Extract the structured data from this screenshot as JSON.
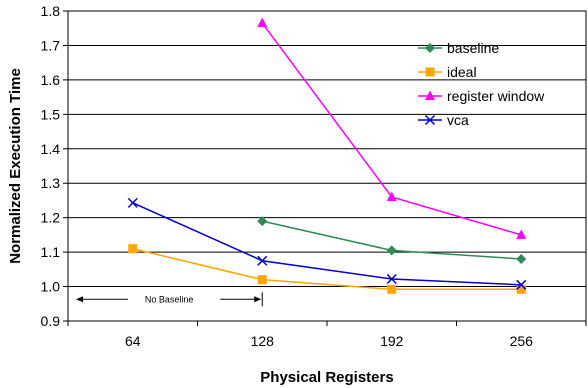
{
  "chart_data": {
    "type": "line",
    "xlabel": "Physical Registers",
    "ylabel": "Normalized Execution Time",
    "x": [
      "64",
      "128",
      "192",
      "256"
    ],
    "ylim": [
      0.9,
      1.8
    ],
    "yticks": [
      "0.9",
      "1.0",
      "1.1",
      "1.2",
      "1.3",
      "1.4",
      "1.5",
      "1.6",
      "1.7",
      "1.8"
    ],
    "grid": "horizontal",
    "legend_position": "top-right",
    "series": [
      {
        "name": "baseline",
        "color": "#2E8B57",
        "marker": "diamond",
        "values": [
          null,
          1.19,
          1.105,
          1.08
        ]
      },
      {
        "name": "ideal",
        "color": "#FFA500",
        "marker": "square",
        "values": [
          1.11,
          1.02,
          0.992,
          0.992
        ]
      },
      {
        "name": "register window",
        "color": "#FF00FF",
        "marker": "triangle",
        "values": [
          null,
          1.765,
          1.26,
          1.15
        ]
      },
      {
        "name": "vca",
        "color": "#0000CC",
        "marker": "x",
        "values": [
          1.243,
          1.075,
          1.022,
          1.005
        ]
      }
    ],
    "annotation": {
      "text": "No Baseline",
      "from": "64",
      "to": "128"
    }
  }
}
